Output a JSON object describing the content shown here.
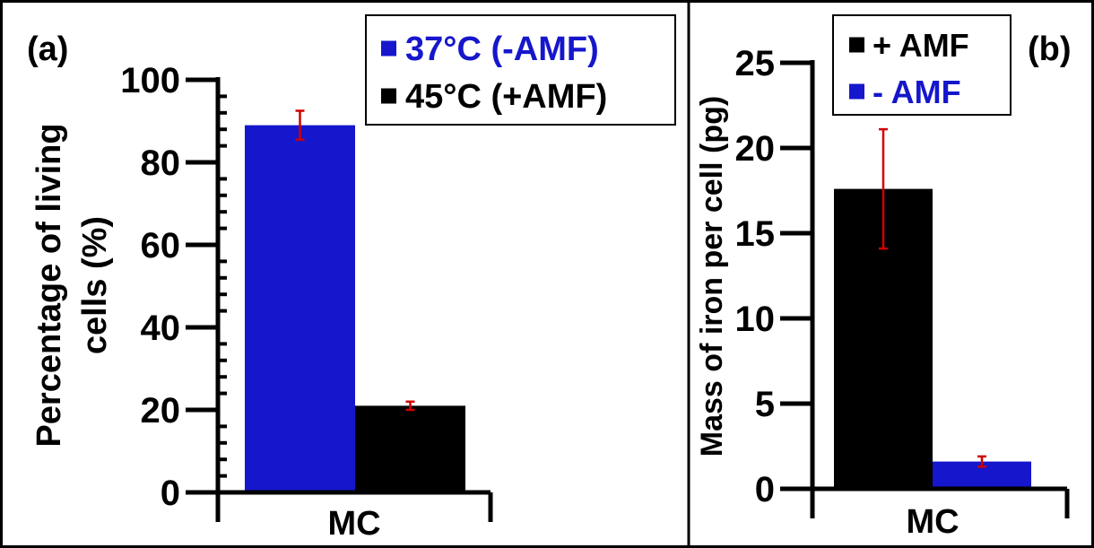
{
  "chart_data": [
    {
      "panel_label": "(a)",
      "type": "bar",
      "categories": [
        "MC"
      ],
      "ylabel": [
        "Percentage of living",
        "cells (%)"
      ],
      "ylim": [
        0,
        100
      ],
      "yticks": [
        0,
        20,
        40,
        60,
        80,
        100
      ],
      "tick_labels": [
        "0",
        "20",
        "40",
        "60",
        "80",
        "100"
      ],
      "series": [
        {
          "name": "37°C (-AMF)",
          "values": [
            89
          ],
          "error": [
            3.5
          ],
          "color": "#1616cc"
        },
        {
          "name": "45°C (+AMF)",
          "values": [
            21
          ],
          "error": [
            1
          ],
          "color": "#000000"
        }
      ],
      "legend_position": "top-right",
      "errorbar_color": "#d10000"
    },
    {
      "panel_label": "(b)",
      "type": "bar",
      "categories": [
        "MC"
      ],
      "ylabel": [
        "Mass of iron per cell (pg)"
      ],
      "ylim": [
        0,
        25
      ],
      "yticks": [
        0,
        5,
        10,
        15,
        20,
        25
      ],
      "tick_labels": [
        "0",
        "5",
        "10",
        "15",
        "20",
        "25"
      ],
      "series": [
        {
          "name": "+ AMF",
          "values": [
            17.6
          ],
          "error": [
            3.5
          ],
          "color": "#000000"
        },
        {
          "name": "- AMF",
          "values": [
            1.6
          ],
          "error": [
            0.3
          ],
          "color": "#1616cc"
        }
      ],
      "legend_position": "top-left",
      "errorbar_color": "#d10000"
    }
  ]
}
